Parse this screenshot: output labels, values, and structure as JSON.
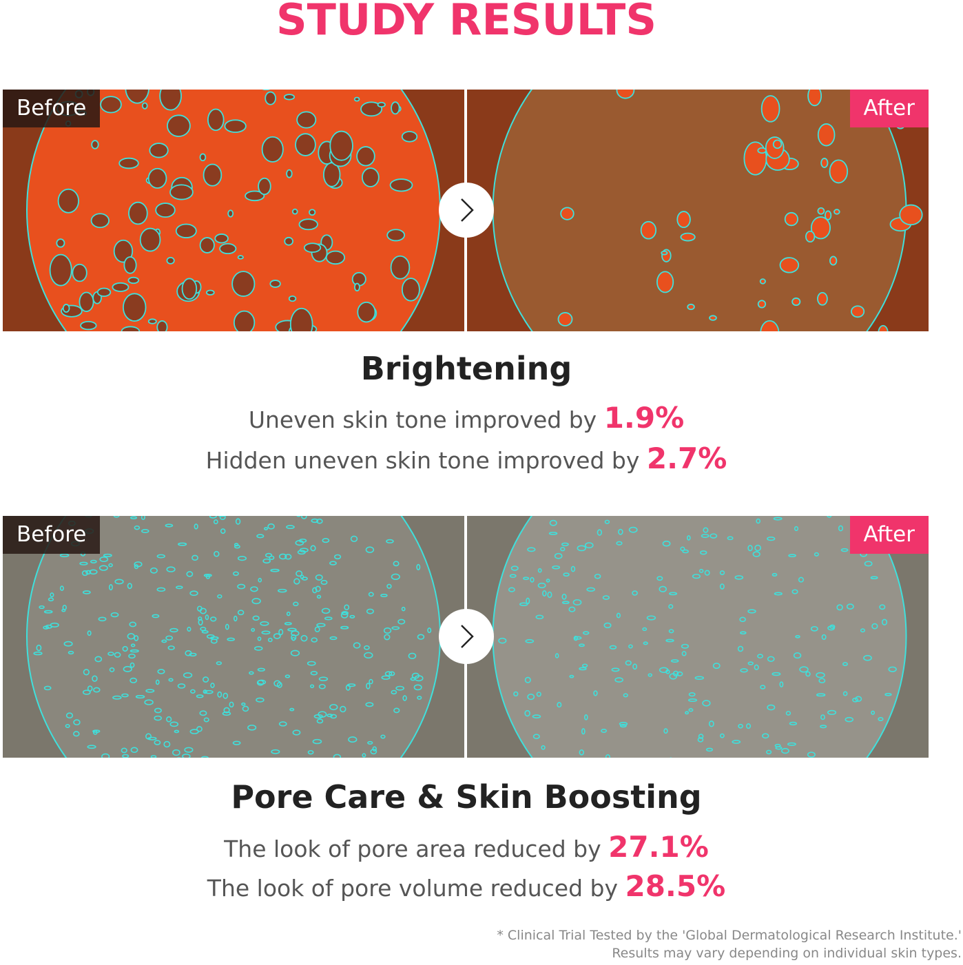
{
  "title": "STUDY RESULTS",
  "colors": {
    "accent": "#f0346b",
    "outline": "#3fe0dc",
    "text": "#555555",
    "heading": "#222222"
  },
  "sections": [
    {
      "before_label": "Before",
      "after_label": "After",
      "arrow_icon": "chevron-right-icon",
      "heading": "Brightening",
      "results": [
        {
          "text": "Uneven skin tone improved by ",
          "value": "1.9%"
        },
        {
          "text": "Hidden uneven skin tone improved by ",
          "value": "2.7%"
        }
      ]
    },
    {
      "before_label": "Before",
      "after_label": "After",
      "arrow_icon": "chevron-right-icon",
      "heading": "Pore Care & Skin Boosting",
      "results": [
        {
          "text": "The look of pore area reduced by ",
          "value": "27.1%"
        },
        {
          "text": "The look of pore volume reduced by ",
          "value": "28.5%"
        }
      ]
    }
  ],
  "footnote": [
    "* Clinical Trial Tested by the 'Global Dermatological Research Institute.'",
    "Results may vary depending on individual skin types."
  ]
}
